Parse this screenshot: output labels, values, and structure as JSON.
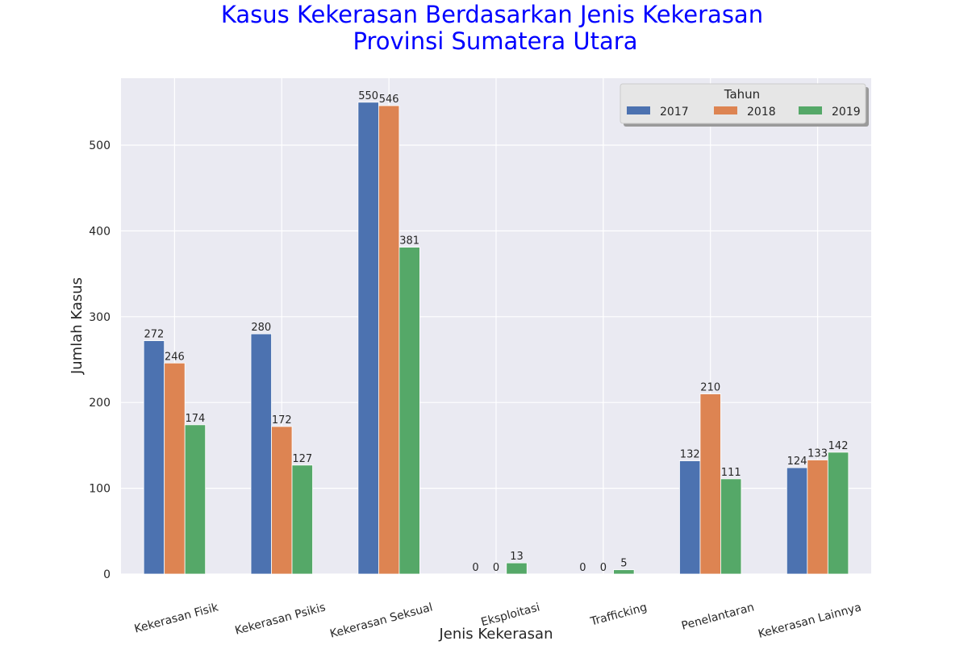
{
  "chart_data": {
    "type": "bar",
    "title_lines": [
      "Kasus Kekerasan Berdasarkan Jenis Kekerasan",
      "Provinsi Sumatera Utara"
    ],
    "xlabel": "Jenis Kekerasan",
    "ylabel": "Jumlah Kasus",
    "categories": [
      "Kekerasan Fisik",
      "Kekerasan Psikis",
      "Kekerasan Seksual",
      "Eksploitasi",
      "Trafficking",
      "Penelantaran",
      "Kekerasan Lainnya"
    ],
    "series": [
      {
        "name": "2017",
        "color": "#4c72b0",
        "values": [
          272,
          280,
          550,
          0,
          0,
          132,
          124
        ]
      },
      {
        "name": "2018",
        "color": "#dd8452",
        "values": [
          246,
          172,
          546,
          0,
          0,
          210,
          133
        ]
      },
      {
        "name": "2019",
        "color": "#55a868",
        "values": [
          174,
          127,
          381,
          13,
          5,
          111,
          142
        ]
      }
    ],
    "ylim": [
      0,
      578
    ],
    "yticks": [
      0,
      100,
      200,
      300,
      400,
      500
    ],
    "legend": {
      "title": "Tahun",
      "position": "top-right"
    },
    "grid": true,
    "style": {
      "plot_background": "#eaeaf2",
      "title_color": "#0000ff",
      "grid_color": "#ffffff"
    }
  }
}
